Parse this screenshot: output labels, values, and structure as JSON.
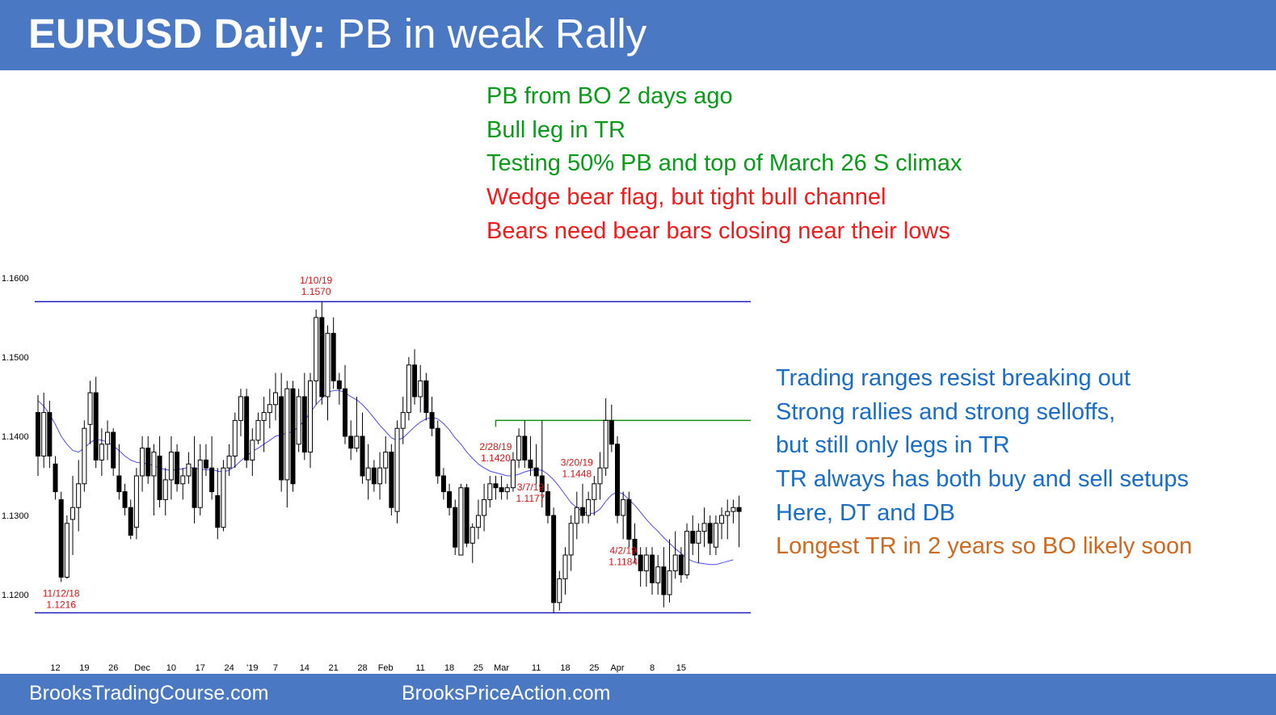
{
  "header": {
    "title_bold": "EURUSD Daily:",
    "title_rest": " PB in weak Rally"
  },
  "footer": {
    "left": "BrooksTradingCourse.com",
    "center": "BrooksPriceAction.com"
  },
  "colors": {
    "banner": "#4a78c2",
    "green": "#0a9a1a",
    "red": "#ee1c1c",
    "blue": "#1a6dc4",
    "orange": "#cc6a22",
    "range_line": "#1e1ebe",
    "ma": "#4c4cf0",
    "resistance": "#139413"
  },
  "notes_top": [
    {
      "text": "PB from BO 2 days ago",
      "color": "green"
    },
    {
      "text": "Bull leg in TR",
      "color": "green"
    },
    {
      "text": "Testing 50% PB and top of March 26 S climax",
      "color": "green"
    },
    {
      "text": "Wedge bear flag, but tight bull channel",
      "color": "red"
    },
    {
      "text": "Bears need bear bars closing near their lows",
      "color": "red"
    }
  ],
  "notes_right": [
    {
      "text": "Trading ranges resist breaking out",
      "color": "blue"
    },
    {
      "text": "Strong rallies and strong selloffs,",
      "color": "blue"
    },
    {
      "text": "but still only legs in TR",
      "color": "blue"
    },
    {
      "text": "TR always has both buy and sell setups",
      "color": "blue"
    },
    {
      "text": "Here, DT and DB",
      "color": "blue"
    },
    {
      "text": "Longest TR in 2 years so BO likely soon",
      "color": "orange"
    }
  ],
  "chart_data": {
    "type": "candlestick",
    "ylim": [
      1.115,
      1.163
    ],
    "yticks": [
      1.12,
      1.13,
      1.14,
      1.15,
      1.16
    ],
    "ytick_labels": [
      "1.1200",
      "1.1300",
      "1.1400",
      "1.1500",
      "1.1600"
    ],
    "xtick_labels": [
      {
        "label": "12",
        "index": 3
      },
      {
        "label": "19",
        "index": 8
      },
      {
        "label": "26",
        "index": 13
      },
      {
        "label": "Dec",
        "index": 18
      },
      {
        "label": "10",
        "index": 23
      },
      {
        "label": "17",
        "index": 28
      },
      {
        "label": "24",
        "index": 33
      },
      {
        "label": "'19",
        "index": 37
      },
      {
        "label": "7",
        "index": 41
      },
      {
        "label": "14",
        "index": 46
      },
      {
        "label": "21",
        "index": 51
      },
      {
        "label": "28",
        "index": 56
      },
      {
        "label": "Feb",
        "index": 60
      },
      {
        "label": "11",
        "index": 66
      },
      {
        "label": "18",
        "index": 71
      },
      {
        "label": "25",
        "index": 76
      },
      {
        "label": "Mar",
        "index": 80
      },
      {
        "label": "11",
        "index": 86
      },
      {
        "label": "18",
        "index": 91
      },
      {
        "label": "25",
        "index": 96
      },
      {
        "label": "Apr",
        "index": 100
      },
      {
        "label": "8",
        "index": 106
      },
      {
        "label": "15",
        "index": 111
      }
    ],
    "candles": [
      [
        1.143,
        1.1452,
        1.135,
        1.1375
      ],
      [
        1.1375,
        1.1455,
        1.136,
        1.143
      ],
      [
        1.143,
        1.1445,
        1.136,
        1.1375
      ],
      [
        1.1365,
        1.1375,
        1.132,
        1.133
      ],
      [
        1.132,
        1.133,
        1.1216,
        1.1222
      ],
      [
        1.1222,
        1.13,
        1.122,
        1.129
      ],
      [
        1.1295,
        1.135,
        1.125,
        1.131
      ],
      [
        1.131,
        1.137,
        1.128,
        1.134
      ],
      [
        1.134,
        1.142,
        1.133,
        1.141
      ],
      [
        1.1415,
        1.147,
        1.139,
        1.1455
      ],
      [
        1.1455,
        1.1475,
        1.136,
        1.137
      ],
      [
        1.137,
        1.141,
        1.135,
        1.139
      ],
      [
        1.139,
        1.142,
        1.137,
        1.1405
      ],
      [
        1.1405,
        1.141,
        1.135,
        1.136
      ],
      [
        1.135,
        1.139,
        1.132,
        1.133
      ],
      [
        1.133,
        1.134,
        1.13,
        1.131
      ],
      [
        1.131,
        1.132,
        1.127,
        1.1275
      ],
      [
        1.1285,
        1.136,
        1.127,
        1.135
      ],
      [
        1.135,
        1.14,
        1.133,
        1.1385
      ],
      [
        1.1385,
        1.14,
        1.134,
        1.135
      ],
      [
        1.135,
        1.139,
        1.13,
        1.138
      ],
      [
        1.1375,
        1.14,
        1.131,
        1.132
      ],
      [
        1.132,
        1.136,
        1.13,
        1.1345
      ],
      [
        1.1345,
        1.14,
        1.132,
        1.138
      ],
      [
        1.138,
        1.139,
        1.133,
        1.134
      ],
      [
        1.134,
        1.136,
        1.132,
        1.135
      ],
      [
        1.135,
        1.138,
        1.134,
        1.1365
      ],
      [
        1.136,
        1.14,
        1.129,
        1.131
      ],
      [
        1.131,
        1.139,
        1.13,
        1.137
      ],
      [
        1.137,
        1.139,
        1.135,
        1.136
      ],
      [
        1.136,
        1.14,
        1.132,
        1.133
      ],
      [
        1.1325,
        1.136,
        1.127,
        1.1285
      ],
      [
        1.1285,
        1.137,
        1.128,
        1.136
      ],
      [
        1.136,
        1.139,
        1.135,
        1.1375
      ],
      [
        1.1375,
        1.143,
        1.136,
        1.142
      ],
      [
        1.142,
        1.146,
        1.14,
        1.145
      ],
      [
        1.145,
        1.146,
        1.136,
        1.137
      ],
      [
        1.137,
        1.141,
        1.135,
        1.1395
      ],
      [
        1.1395,
        1.143,
        1.139,
        1.142
      ],
      [
        1.142,
        1.145,
        1.138,
        1.143
      ],
      [
        1.143,
        1.146,
        1.141,
        1.144
      ],
      [
        1.144,
        1.148,
        1.142,
        1.1455
      ],
      [
        1.145,
        1.148,
        1.133,
        1.1345
      ],
      [
        1.1345,
        1.147,
        1.131,
        1.146
      ],
      [
        1.146,
        1.147,
        1.133,
        1.134
      ],
      [
        1.139,
        1.146,
        1.138,
        1.145
      ],
      [
        1.145,
        1.148,
        1.137,
        1.138
      ],
      [
        1.138,
        1.148,
        1.136,
        1.147
      ],
      [
        1.147,
        1.156,
        1.144,
        1.155
      ],
      [
        1.155,
        1.157,
        1.144,
        1.145
      ],
      [
        1.145,
        1.154,
        1.142,
        1.153
      ],
      [
        1.153,
        1.155,
        1.146,
        1.147
      ],
      [
        1.147,
        1.148,
        1.144,
        1.146
      ],
      [
        1.146,
        1.149,
        1.139,
        1.14
      ],
      [
        1.14,
        1.142,
        1.137,
        1.1385
      ],
      [
        1.1385,
        1.145,
        1.138,
        1.14
      ],
      [
        1.14,
        1.143,
        1.134,
        1.135
      ],
      [
        1.1345,
        1.139,
        1.132,
        1.136
      ],
      [
        1.136,
        1.137,
        1.133,
        1.134
      ],
      [
        1.134,
        1.138,
        1.132,
        1.136
      ],
      [
        1.136,
        1.14,
        1.134,
        1.138
      ],
      [
        1.138,
        1.139,
        1.13,
        1.131
      ],
      [
        1.1305,
        1.142,
        1.129,
        1.141
      ],
      [
        1.141,
        1.145,
        1.139,
        1.143
      ],
      [
        1.143,
        1.15,
        1.142,
        1.149
      ],
      [
        1.149,
        1.151,
        1.144,
        1.145
      ],
      [
        1.145,
        1.149,
        1.143,
        1.147
      ],
      [
        1.147,
        1.148,
        1.142,
        1.143
      ],
      [
        1.143,
        1.145,
        1.14,
        1.141
      ],
      [
        1.141,
        1.142,
        1.134,
        1.135
      ],
      [
        1.135,
        1.136,
        1.132,
        1.133
      ],
      [
        1.133,
        1.134,
        1.13,
        1.131
      ],
      [
        1.131,
        1.132,
        1.125,
        1.126
      ],
      [
        1.125,
        1.134,
        1.125,
        1.1335
      ],
      [
        1.1335,
        1.134,
        1.126,
        1.1265
      ],
      [
        1.1265,
        1.129,
        1.124,
        1.1285
      ],
      [
        1.1285,
        1.132,
        1.127,
        1.13
      ],
      [
        1.13,
        1.134,
        1.128,
        1.132
      ],
      [
        1.132,
        1.135,
        1.131,
        1.134
      ],
      [
        1.134,
        1.135,
        1.132,
        1.1335
      ],
      [
        1.1335,
        1.135,
        1.132,
        1.133
      ],
      [
        1.133,
        1.134,
        1.132,
        1.1335
      ],
      [
        1.1335,
        1.138,
        1.133,
        1.137
      ],
      [
        1.137,
        1.141,
        1.136,
        1.14
      ],
      [
        1.14,
        1.142,
        1.136,
        1.137
      ],
      [
        1.137,
        1.14,
        1.135,
        1.136
      ],
      [
        1.136,
        1.139,
        1.134,
        1.135
      ],
      [
        1.135,
        1.142,
        1.131,
        1.133
      ],
      [
        1.133,
        1.134,
        1.129,
        1.13
      ],
      [
        1.13,
        1.131,
        1.1177,
        1.119
      ],
      [
        1.119,
        1.123,
        1.118,
        1.122
      ],
      [
        1.122,
        1.126,
        1.12,
        1.125
      ],
      [
        1.125,
        1.13,
        1.123,
        1.129
      ],
      [
        1.129,
        1.133,
        1.127,
        1.131
      ],
      [
        1.131,
        1.134,
        1.129,
        1.13
      ],
      [
        1.13,
        1.133,
        1.129,
        1.132
      ],
      [
        1.132,
        1.135,
        1.13,
        1.134
      ],
      [
        1.134,
        1.138,
        1.132,
        1.136
      ],
      [
        1.136,
        1.1448,
        1.135,
        1.142
      ],
      [
        1.142,
        1.144,
        1.138,
        1.139
      ],
      [
        1.139,
        1.14,
        1.129,
        1.13
      ],
      [
        1.13,
        1.133,
        1.127,
        1.132
      ],
      [
        1.132,
        1.133,
        1.126,
        1.127
      ],
      [
        1.127,
        1.129,
        1.124,
        1.125
      ],
      [
        1.125,
        1.126,
        1.121,
        1.123
      ],
      [
        1.123,
        1.126,
        1.121,
        1.125
      ],
      [
        1.125,
        1.126,
        1.12,
        1.1215
      ],
      [
        1.1215,
        1.125,
        1.12,
        1.1235
      ],
      [
        1.1235,
        1.126,
        1.1184,
        1.12
      ],
      [
        1.12,
        1.127,
        1.119,
        1.123
      ],
      [
        1.123,
        1.128,
        1.122,
        1.125
      ],
      [
        1.125,
        1.126,
        1.1215,
        1.1225
      ],
      [
        1.1225,
        1.129,
        1.122,
        1.128
      ],
      [
        1.128,
        1.13,
        1.125,
        1.1265
      ],
      [
        1.1265,
        1.129,
        1.124,
        1.128
      ],
      [
        1.128,
        1.131,
        1.126,
        1.129
      ],
      [
        1.129,
        1.13,
        1.125,
        1.1265
      ],
      [
        1.126,
        1.13,
        1.125,
        1.129
      ],
      [
        1.129,
        1.131,
        1.127,
        1.13
      ],
      [
        1.13,
        1.132,
        1.127,
        1.1305
      ],
      [
        1.1305,
        1.132,
        1.129,
        1.131
      ],
      [
        1.131,
        1.1325,
        1.126,
        1.1305
      ]
    ],
    "moving_average": [
      1.1445,
      1.1438,
      1.1428,
      1.1415,
      1.14,
      1.139,
      1.1382,
      1.138,
      1.1385,
      1.1392,
      1.1396,
      1.1395,
      1.1393,
      1.1388,
      1.1382,
      1.1375,
      1.137,
      1.1367,
      1.1366,
      1.1365,
      1.1363,
      1.136,
      1.1358,
      1.1357,
      1.1358,
      1.1359,
      1.1361,
      1.136,
      1.1358,
      1.1358,
      1.1358,
      1.1356,
      1.1355,
      1.1357,
      1.1362,
      1.1369,
      1.1375,
      1.1381,
      1.1385,
      1.139,
      1.1395,
      1.14,
      1.1402,
      1.1404,
      1.1406,
      1.1412,
      1.142,
      1.143,
      1.144,
      1.1448,
      1.1455,
      1.1458,
      1.1458,
      1.1455,
      1.145,
      1.1446,
      1.144,
      1.1432,
      1.1423,
      1.1414,
      1.1406,
      1.1398,
      1.1395,
      1.1398,
      1.1405,
      1.1412,
      1.1418,
      1.1422,
      1.1424,
      1.1422,
      1.1416,
      1.1408,
      1.1398,
      1.139,
      1.138,
      1.1372,
      1.1365,
      1.136,
      1.1356,
      1.1354,
      1.1352,
      1.135,
      1.135,
      1.1352,
      1.1355,
      1.1357,
      1.1358,
      1.1357,
      1.1352,
      1.1345,
      1.1336,
      1.1326,
      1.1316,
      1.131,
      1.1305,
      1.1302,
      1.1303,
      1.1308,
      1.1318,
      1.1326,
      1.133,
      1.1327,
      1.132,
      1.1313,
      1.1304,
      1.1295,
      1.1287,
      1.128,
      1.1272,
      1.1265,
      1.1258,
      1.1252,
      1.1246,
      1.1242,
      1.124,
      1.1239,
      1.1238,
      1.1238,
      1.124,
      1.1242,
      1.1244
    ],
    "range_top": 1.157,
    "range_bottom": 1.1177,
    "resistance": {
      "value": 1.142,
      "from_index": 79
    },
    "annotations": [
      {
        "date": "1/10/19",
        "price": "1.1570",
        "index": 48,
        "pos": "above"
      },
      {
        "date": "11/12/18",
        "price": "1.1216",
        "index": 4,
        "pos": "below"
      },
      {
        "date": "2/28/19",
        "price": "1.1420",
        "index": 79,
        "pos": "above"
      },
      {
        "date": "3/20/19",
        "price": "1.1448",
        "index": 93,
        "pos": "above"
      },
      {
        "date": "3/7/19",
        "price": "1.1177",
        "index": 85,
        "pos": "below"
      },
      {
        "date": "4/2/19",
        "price": "1.1184",
        "index": 101,
        "pos": "below"
      }
    ]
  }
}
